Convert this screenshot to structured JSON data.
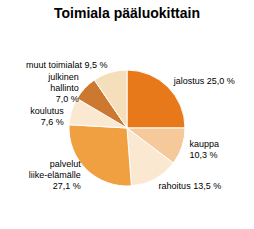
{
  "chart_data": {
    "type": "pie",
    "title": "Toimiala pääluokittain",
    "categories": [
      "jalostus 25,0 %",
      "kauppa\n10,3 %",
      "rahoitus 13,5 %",
      "palvelut\nliike-elämälle\n27,1 %",
      "koulutus\n7,6 %",
      "julkinen\nhallinto\n7,0 %",
      "muut toimialat 9,5 %"
    ],
    "values": [
      25.0,
      10.3,
      13.5,
      27.1,
      7.6,
      7.0,
      9.5
    ],
    "colors": [
      "#E8791A",
      "#F5C99A",
      "#FAE8D0",
      "#F0A040",
      "#FAE8D0",
      "#CC7830",
      "#F5DFBB"
    ]
  }
}
